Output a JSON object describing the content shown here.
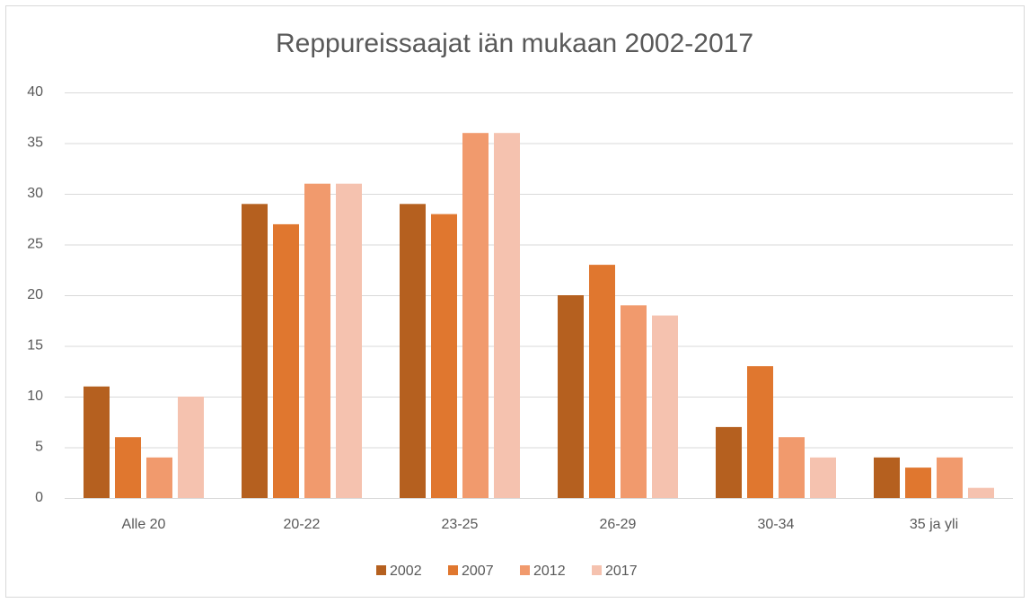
{
  "chart_data": {
    "type": "bar",
    "title": "Reppureissaajat iän mukaan 2002-2017",
    "categories": [
      "Alle 20",
      "20-22",
      "23-25",
      "26-29",
      "30-34",
      "35 ja yli"
    ],
    "series": [
      {
        "name": "2002",
        "color": "#b5601f",
        "values": [
          11,
          29,
          29,
          20,
          7,
          4
        ]
      },
      {
        "name": "2007",
        "color": "#e0772f",
        "values": [
          6,
          27,
          28,
          23,
          13,
          3
        ]
      },
      {
        "name": "2012",
        "color": "#f19a6d",
        "values": [
          4,
          31,
          36,
          19,
          6,
          4
        ]
      },
      {
        "name": "2017",
        "color": "#f5c2af",
        "values": [
          10,
          31,
          36,
          18,
          4,
          1
        ]
      }
    ],
    "ylim": [
      0,
      40
    ],
    "yticks": [
      0,
      5,
      10,
      15,
      20,
      25,
      30,
      35,
      40
    ],
    "grid": true,
    "legend": "bottom"
  }
}
